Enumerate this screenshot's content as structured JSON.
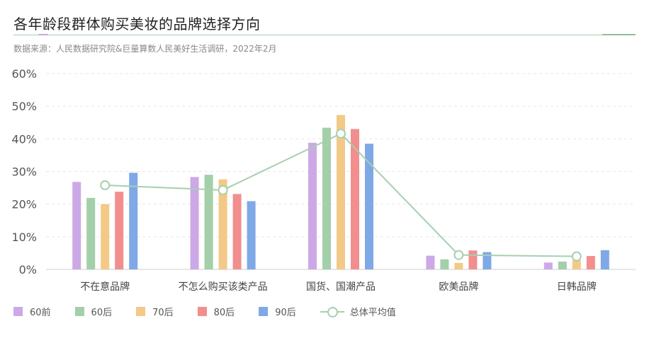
{
  "header": {
    "title": "各年龄段群体购买美妆的品牌选择方向",
    "source": "数据来源：人民数据研究院&巨量算数人民美好生活调研，2022年2月"
  },
  "chart_data": {
    "type": "bar",
    "title": "各年龄段群体购买美妆的品牌选择方向",
    "categories": [
      "不在意品牌",
      "不怎么购买该类产品",
      "国货、国潮产品",
      "欧美品牌",
      "日韩品牌"
    ],
    "series": [
      {
        "name": "60前",
        "color": "#cda8e6",
        "values": [
          26.8,
          28.3,
          38.8,
          4.2,
          2.1
        ]
      },
      {
        "name": "60后",
        "color": "#a3cfa9",
        "values": [
          21.9,
          29.0,
          43.4,
          3.1,
          2.4
        ]
      },
      {
        "name": "70后",
        "color": "#f3c987",
        "values": [
          20.0,
          27.6,
          47.3,
          2.0,
          2.9
        ]
      },
      {
        "name": "80后",
        "color": "#f28e8e",
        "values": [
          23.8,
          23.1,
          43.0,
          5.8,
          4.1
        ]
      },
      {
        "name": "90后",
        "color": "#7fa8e6",
        "values": [
          29.6,
          20.9,
          38.5,
          5.3,
          5.9
        ]
      }
    ],
    "line_series": {
      "name": "总体平均值",
      "type": "line",
      "color": "#a6cfaf",
      "values": [
        25.8,
        24.3,
        41.6,
        4.4,
        4.0
      ]
    },
    "ylim": [
      0,
      60
    ],
    "yticks": [
      0,
      10,
      20,
      30,
      40,
      50,
      60
    ],
    "ytick_labels": [
      "0%",
      "10%",
      "20%",
      "30%",
      "40%",
      "50%",
      "60%"
    ],
    "grid": true,
    "legend_position": "bottom-left",
    "xlabel": "",
    "ylabel": ""
  }
}
